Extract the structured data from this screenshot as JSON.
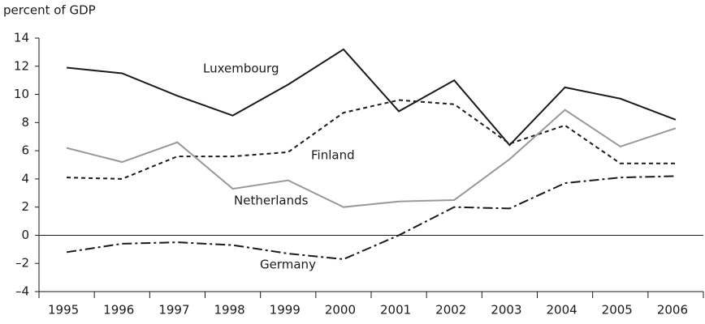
{
  "chart_data": {
    "type": "line",
    "title": "percent of GDP",
    "categories": [
      "1995",
      "1996",
      "1997",
      "1998",
      "1999",
      "2000",
      "2001",
      "2002",
      "2003",
      "2004",
      "2005",
      "2006"
    ],
    "ylim": [
      -4,
      14
    ],
    "yticks": [
      {
        "value": -4,
        "label": "–4"
      },
      {
        "value": -2,
        "label": "–2"
      },
      0,
      2,
      4,
      6,
      8,
      10,
      12,
      14
    ],
    "grid": false,
    "series": [
      {
        "name": "Luxembourg",
        "color": "#1a1a1a",
        "line_style": "solid",
        "values": [
          11.9,
          11.5,
          9.9,
          8.5,
          10.7,
          13.2,
          8.8,
          11.0,
          6.4,
          10.5,
          9.7,
          8.2
        ]
      },
      {
        "name": "Finland",
        "color": "#1a1a1a",
        "line_style": "dashed",
        "values": [
          4.1,
          4.0,
          5.6,
          5.6,
          5.9,
          8.7,
          9.6,
          9.3,
          6.5,
          7.8,
          5.1,
          5.1
        ]
      },
      {
        "name": "Netherlands",
        "color": "#999999",
        "line_style": "solid",
        "values": [
          6.2,
          5.2,
          6.6,
          3.3,
          3.9,
          2.0,
          2.4,
          2.5,
          5.4,
          8.9,
          6.3,
          7.6
        ]
      },
      {
        "name": "Germany",
        "color": "#1a1a1a",
        "line_style": "dashdot",
        "values": [
          -1.2,
          -0.6,
          -0.5,
          -0.7,
          -1.3,
          -1.7,
          0.0,
          2.0,
          1.9,
          3.7,
          4.1,
          4.2
        ]
      }
    ]
  }
}
